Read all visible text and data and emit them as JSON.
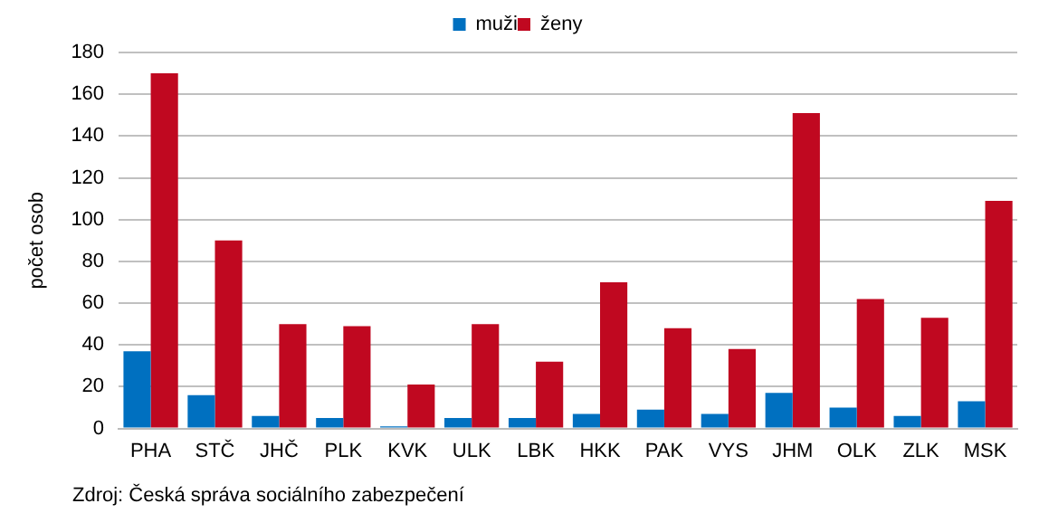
{
  "chart_data": {
    "type": "bar",
    "ylabel": "počet osob",
    "categories": [
      "PHA",
      "STČ",
      "JHČ",
      "PLK",
      "KVK",
      "ULK",
      "LBK",
      "HKK",
      "PAK",
      "VYS",
      "JHM",
      "OLK",
      "ZLK",
      "MSK"
    ],
    "series": [
      {
        "name": "muži",
        "color": "#0070c0",
        "values": [
          37,
          16,
          6,
          5,
          1,
          5,
          5,
          7,
          9,
          7,
          17,
          10,
          6,
          13
        ]
      },
      {
        "name": "ženy",
        "color": "#c00820",
        "values": [
          170,
          90,
          50,
          49,
          21,
          50,
          32,
          70,
          48,
          38,
          151,
          62,
          53,
          109
        ]
      }
    ],
    "ylim": [
      0,
      180
    ],
    "yticks": [
      0,
      20,
      40,
      60,
      80,
      100,
      120,
      140,
      160,
      180
    ],
    "grid": "y",
    "legend": "top",
    "annotations": [
      "Zdroj: Česká správa sociálního zabezpečení"
    ]
  }
}
